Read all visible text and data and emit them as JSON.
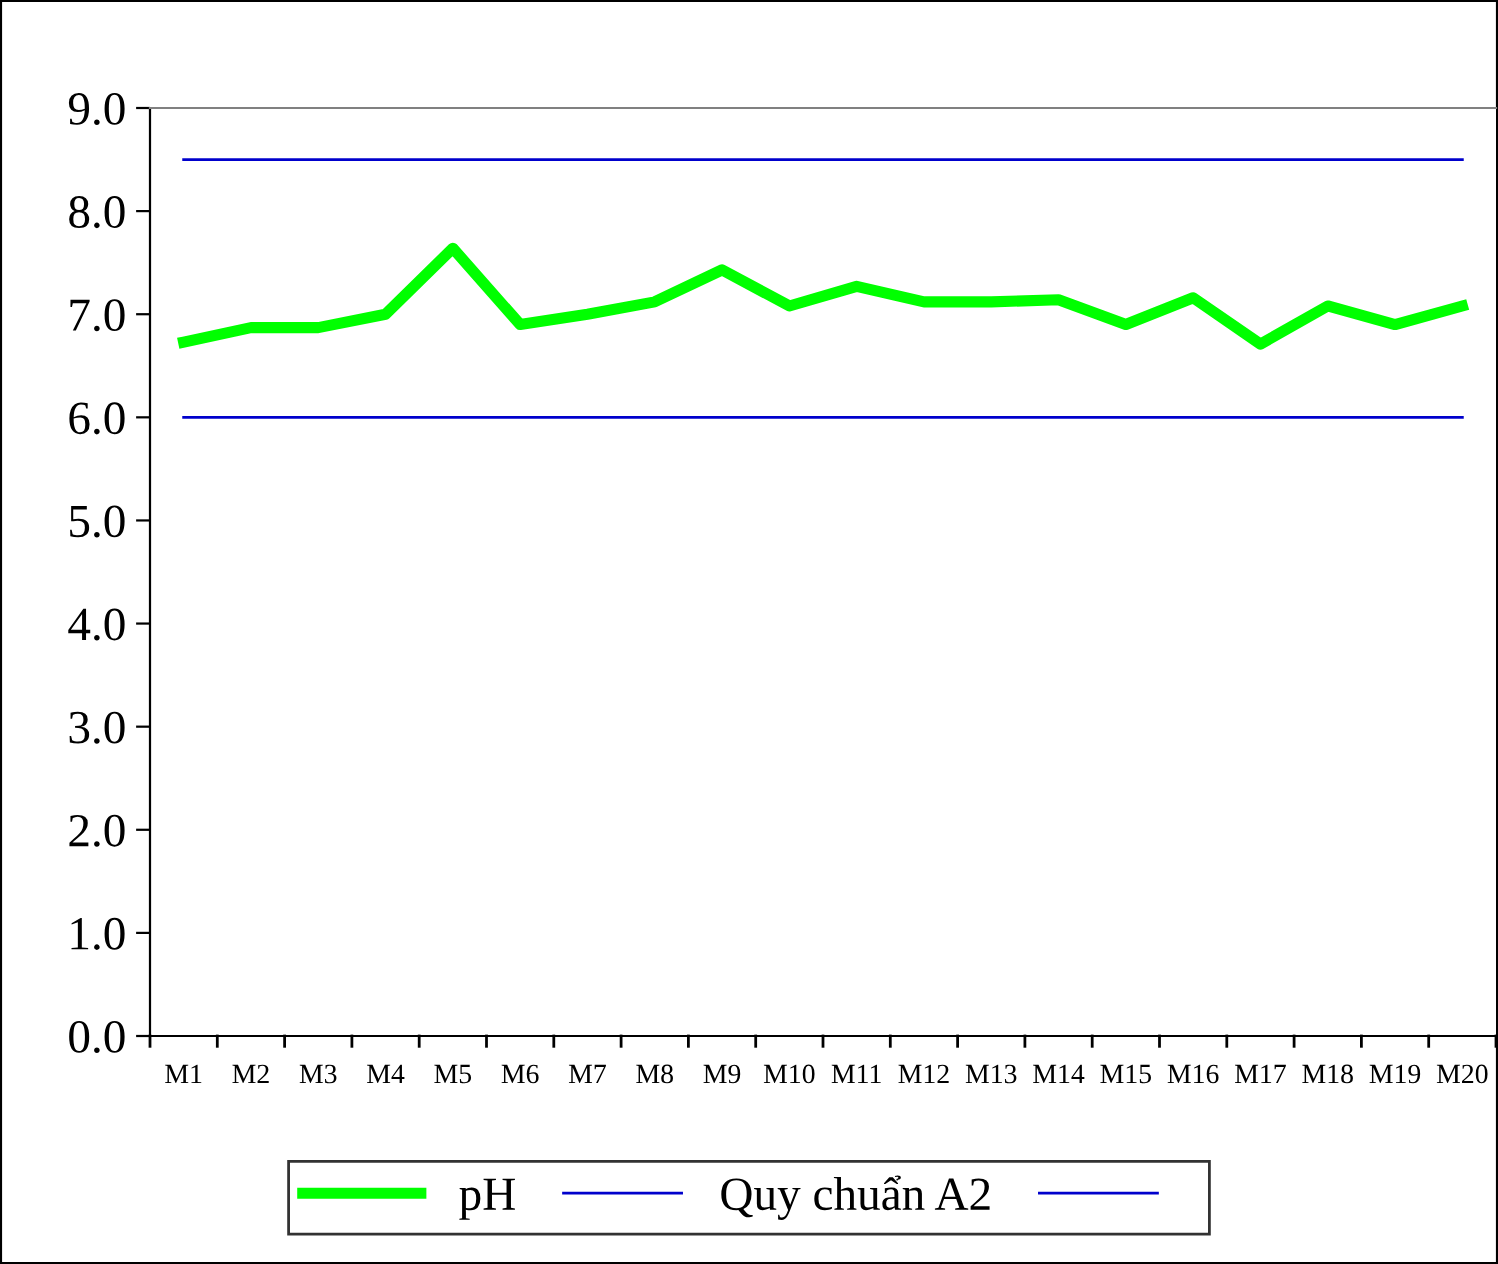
{
  "chart_data": {
    "type": "line",
    "categories": [
      "M1",
      "M2",
      "M3",
      "M4",
      "M5",
      "M6",
      "M7",
      "M8",
      "M9",
      "M10",
      "M11",
      "M12",
      "M13",
      "M14",
      "M15",
      "M16",
      "M17",
      "M18",
      "M19",
      "M20"
    ],
    "series": [
      {
        "name": "pH",
        "color": "#00ff00",
        "values": [
          6.73,
          6.87,
          6.87,
          7.0,
          7.64,
          6.9,
          7.0,
          7.12,
          7.43,
          7.08,
          7.27,
          7.12,
          7.12,
          7.14,
          6.9,
          7.16,
          6.71,
          7.08,
          6.9,
          7.08
        ]
      },
      {
        "name": "Quy chuẩn A2",
        "color": "#0000cc",
        "values": [
          8.5,
          8.5,
          8.5,
          8.5,
          8.5,
          8.5,
          8.5,
          8.5,
          8.5,
          8.5,
          8.5,
          8.5,
          8.5,
          8.5,
          8.5,
          8.5,
          8.5,
          8.5,
          8.5,
          8.5
        ]
      },
      {
        "color": "#0000cc",
        "values": [
          6.0,
          6.0,
          6.0,
          6.0,
          6.0,
          6.0,
          6.0,
          6.0,
          6.0,
          6.0,
          6.0,
          6.0,
          6.0,
          6.0,
          6.0,
          6.0,
          6.0,
          6.0,
          6.0,
          6.0
        ]
      }
    ],
    "ylim": [
      0,
      9
    ],
    "yticks": [
      {
        "value": 0,
        "label": "0.0"
      },
      {
        "value": 1,
        "label": "1.0"
      },
      {
        "value": 2,
        "label": "2.0"
      },
      {
        "value": 3,
        "label": "3.0"
      },
      {
        "value": 4,
        "label": "4.0"
      },
      {
        "value": 5,
        "label": "5.0"
      },
      {
        "value": 6,
        "label": "6.0"
      },
      {
        "value": 7,
        "label": "7.0"
      },
      {
        "value": 8,
        "label": "8.0"
      },
      {
        "value": 9,
        "label": "9.0"
      }
    ],
    "legend": "bottom"
  }
}
